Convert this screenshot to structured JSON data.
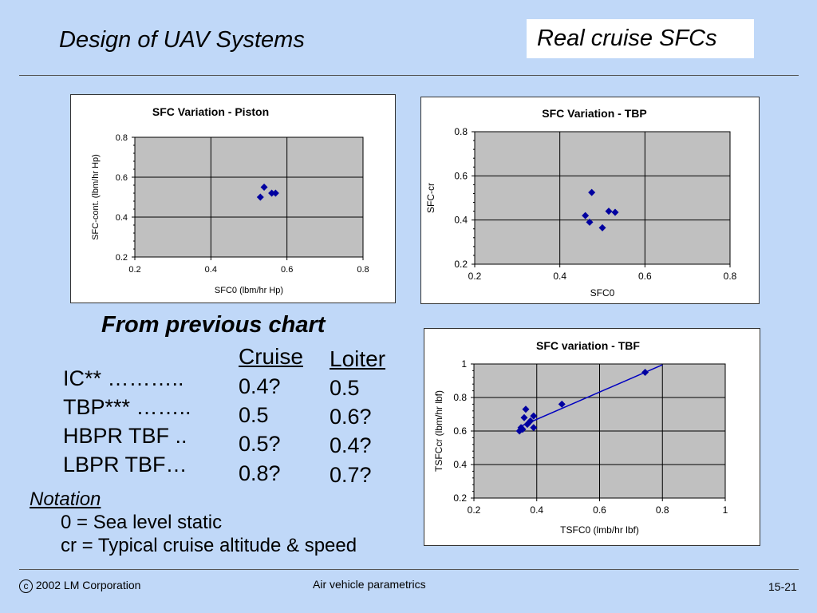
{
  "slide": {
    "title": "Design of UAV Systems",
    "subtitle": "Real cruise SFCs",
    "table_heading": "From previous chart",
    "columns": [
      "Cruise",
      "Loiter"
    ],
    "rows": [
      {
        "label": "IC** ………..",
        "cruise": "0.4?",
        "loiter": "0.5"
      },
      {
        "label": "TBP*** ……..",
        "cruise": "0.5",
        "loiter": "0.6?"
      },
      {
        "label": "HBPR TBF ..",
        "cruise": "0.5?",
        "loiter": "0.4?"
      },
      {
        "label": "LBPR TBF…",
        "cruise": "0.8?",
        "loiter": "0.7?"
      }
    ],
    "notation": {
      "heading": "Notation",
      "lines": [
        "0 = Sea level static",
        "cr = Typical cruise altitude & speed"
      ]
    },
    "footer": {
      "copyright_symbol": "c",
      "copyright": "2002 LM Corporation",
      "center": "Air vehicle parametrics",
      "page": "15-21"
    }
  },
  "colors": {
    "background": "#c0d8f8",
    "plot_area": "#c0c0c0",
    "marker": "#0000a0",
    "trendline": "#0000c0"
  },
  "chart_data": [
    {
      "type": "scatter",
      "title": "SFC Variation - Piston",
      "xlabel": "SFC0  (lbm/hr Hp)",
      "ylabel": "SFC-cont. (lbm/hr Hp)",
      "xlim": [
        0.2,
        0.8
      ],
      "ylim": [
        0.2,
        0.8
      ],
      "xticks": [
        "0.2",
        "0.4",
        "0.6",
        "0.8"
      ],
      "yticks": [
        "0.2",
        "0.4",
        "0.6",
        "0.8"
      ],
      "grid": true,
      "x": [
        0.53,
        0.54,
        0.56,
        0.57
      ],
      "y": [
        0.5,
        0.55,
        0.52,
        0.52
      ]
    },
    {
      "type": "scatter",
      "title": "SFC Variation - TBP",
      "xlabel": "SFC0",
      "ylabel": "SFC-cr",
      "xlim": [
        0.2,
        0.8
      ],
      "ylim": [
        0.2,
        0.8
      ],
      "xticks": [
        "0.2",
        "0.4",
        "0.6",
        "0.8"
      ],
      "yticks": [
        "0.2",
        "0.4",
        "0.6",
        "0.8"
      ],
      "grid": true,
      "x": [
        0.46,
        0.47,
        0.475,
        0.5,
        0.515,
        0.53
      ],
      "y": [
        0.42,
        0.39,
        0.525,
        0.365,
        0.44,
        0.435
      ]
    },
    {
      "type": "scatter",
      "title": "SFC variation - TBF",
      "xlabel": "TSFC0 (lmb/hr lbf)",
      "ylabel": "TSFCcr (lbm/hr lbf)",
      "xlim": [
        0.2,
        1.0
      ],
      "ylim": [
        0.2,
        1.0
      ],
      "xticks": [
        "0.2",
        "0.4",
        "0.6",
        "0.8",
        "1"
      ],
      "yticks": [
        "0.2",
        "0.4",
        "0.6",
        "0.8",
        "1"
      ],
      "grid": true,
      "x": [
        0.345,
        0.35,
        0.355,
        0.36,
        0.365,
        0.37,
        0.38,
        0.39,
        0.39,
        0.48,
        0.745
      ],
      "y": [
        0.6,
        0.62,
        0.61,
        0.68,
        0.73,
        0.64,
        0.66,
        0.62,
        0.69,
        0.76,
        0.95
      ],
      "trendline": {
        "x": [
          0.345,
          0.8
        ],
        "y": [
          0.625,
          0.995
        ]
      }
    }
  ]
}
